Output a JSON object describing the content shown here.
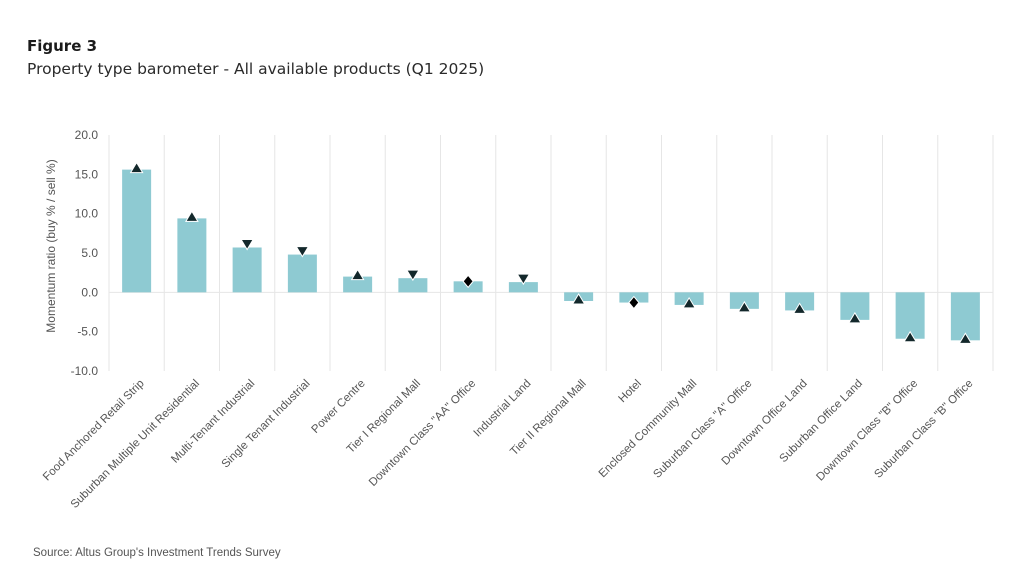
{
  "figure": {
    "number": "Figure 3",
    "title": "Property type barometer - All available products (Q1 2025)",
    "source": "Source:  Altus Group's Investment Trends Survey"
  },
  "colors": {
    "bar": "#8ecad2",
    "marker": "#13282b",
    "diamond": "#000000",
    "grid": "#e6e6e6"
  },
  "chart_data": {
    "type": "bar",
    "title": "Property type barometer - All available products (Q1 2025)",
    "xlabel": "",
    "ylabel": "Momentum ratio (buy % / sell %)",
    "ylim": [
      -10,
      20
    ],
    "yticks": [
      20,
      15,
      10,
      5,
      0,
      -5,
      -10
    ],
    "ytick_labels": [
      "20.0",
      "15.0",
      "10.0",
      "5.0",
      "0.0",
      "-5.0",
      "-10.0"
    ],
    "grid": "vertical category separators",
    "categories": [
      "Food Anchored Retail Strip",
      "Suburban Multiple Unit Residential",
      "Multi-Tenant Industrial",
      "Single Tenant Industrial",
      "Power Centre",
      "Tier I Regional Mall",
      "Downtown Class \"AA\" Office",
      "Industrial Land",
      "Tier II Regional Mall",
      "Hotel",
      "Enclosed Community Mall",
      "Suburban Class \"A\" Office",
      "Downtown Office Land",
      "Suburban Office Land",
      "Downtown Class \"B\" Office",
      "Suburban Class \"B\" Office"
    ],
    "values": [
      15.6,
      9.4,
      5.7,
      4.8,
      2.0,
      1.8,
      1.4,
      1.3,
      -1.1,
      -1.3,
      -1.6,
      -2.1,
      -2.3,
      -3.5,
      -5.9,
      -6.1
    ],
    "trend_markers": [
      "up",
      "up",
      "down",
      "down",
      "up",
      "down",
      "flat",
      "down",
      "up",
      "flat",
      "up",
      "up",
      "up",
      "up",
      "up",
      "up"
    ],
    "marker_legend": {
      "up": "triangle-up (improving)",
      "down": "triangle-down (declining)",
      "flat": "diamond (unchanged)"
    }
  }
}
